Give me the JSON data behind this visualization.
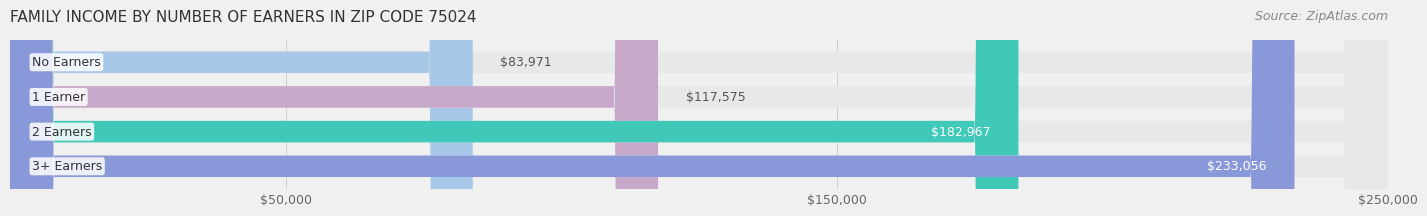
{
  "title": "FAMILY INCOME BY NUMBER OF EARNERS IN ZIP CODE 75024",
  "source": "Source: ZipAtlas.com",
  "categories": [
    "No Earners",
    "1 Earner",
    "2 Earners",
    "3+ Earners"
  ],
  "values": [
    83971,
    117575,
    182967,
    233056
  ],
  "bar_colors": [
    "#a8c8e8",
    "#c8a8c8",
    "#40c8b8",
    "#8898d8"
  ],
  "label_colors": [
    "#555555",
    "#555555",
    "#ffffff",
    "#ffffff"
  ],
  "xlim": [
    0,
    250000
  ],
  "xticks": [
    50000,
    150000,
    250000
  ],
  "xtick_labels": [
    "$50,000",
    "$150,000",
    "$250,000"
  ],
  "bg_color": "#f0f0f0",
  "bar_bg_color": "#e8e8e8",
  "title_fontsize": 11,
  "source_fontsize": 9,
  "label_fontsize": 9,
  "category_fontsize": 9,
  "bar_height": 0.62,
  "figsize": [
    14.06,
    2.33
  ]
}
